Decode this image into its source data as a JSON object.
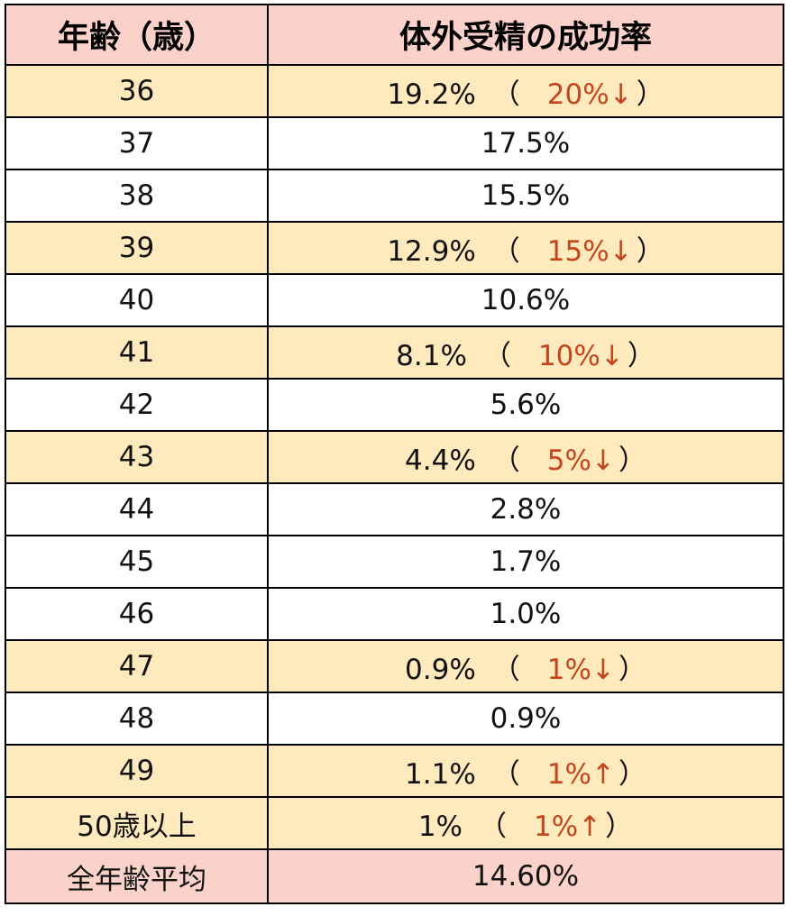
{
  "table": {
    "header": {
      "age": "年齢（歳）",
      "rate": "体外受精の成功率"
    },
    "rows": [
      {
        "age": "36",
        "rate": "19.2%",
        "old": "20%↓",
        "highlight": true
      },
      {
        "age": "37",
        "rate": "17.5%",
        "old": "",
        "highlight": false
      },
      {
        "age": "38",
        "rate": "15.5%",
        "old": "",
        "highlight": false
      },
      {
        "age": "39",
        "rate": "12.9%",
        "old": "15%↓",
        "highlight": true
      },
      {
        "age": "40",
        "rate": "10.6%",
        "old": "",
        "highlight": false
      },
      {
        "age": "41",
        "rate": "8.1%",
        "old": "10%↓",
        "highlight": true
      },
      {
        "age": "42",
        "rate": "5.6%",
        "old": "",
        "highlight": false
      },
      {
        "age": "43",
        "rate": "4.4%",
        "old": "5%↓",
        "highlight": true
      },
      {
        "age": "44",
        "rate": "2.8%",
        "old": "",
        "highlight": false
      },
      {
        "age": "45",
        "rate": "1.7%",
        "old": "",
        "highlight": false
      },
      {
        "age": "46",
        "rate": "1.0%",
        "old": "",
        "highlight": false
      },
      {
        "age": "47",
        "rate": "0.9%",
        "old": "1%↓",
        "highlight": true
      },
      {
        "age": "48",
        "rate": "0.9%",
        "old": "",
        "highlight": false
      },
      {
        "age": "49",
        "rate": "1.1%",
        "old": "1%↑",
        "highlight": true
      },
      {
        "age": "50歳以上",
        "rate": "1%",
        "old": "1%↑",
        "highlight": true
      }
    ],
    "average": {
      "label": "全年齢平均",
      "value": "14.60%"
    },
    "paren_open": "（",
    "paren_close": "）",
    "colors": {
      "header_bg": "#fbd2c9",
      "highlight_bg": "#feeabd",
      "old_rate_text": "#c4451c"
    }
  }
}
